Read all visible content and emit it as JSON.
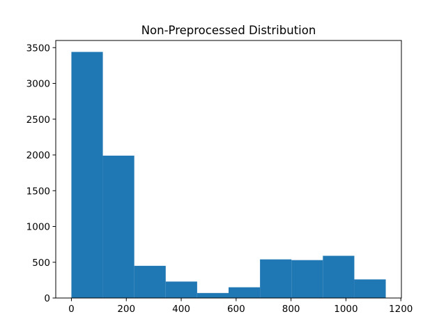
{
  "chart_data": {
    "type": "bar",
    "title": "Non-Preprocessed Distribution",
    "xlabel": "",
    "ylabel": "",
    "xlim": [
      -57,
      1202
    ],
    "ylim": [
      0,
      3600
    ],
    "xticks": [
      0,
      200,
      400,
      600,
      800,
      1000,
      1200
    ],
    "yticks": [
      0,
      500,
      1000,
      1500,
      2000,
      2500,
      3000,
      3500
    ],
    "bin_edges": [
      0,
      114.5,
      229,
      343.5,
      458,
      572.5,
      687,
      801.5,
      916,
      1030.5,
      1145
    ],
    "counts": [
      3440,
      1990,
      450,
      230,
      70,
      150,
      540,
      530,
      590,
      260
    ],
    "bar_color": "#1f77b4",
    "grid": false
  }
}
